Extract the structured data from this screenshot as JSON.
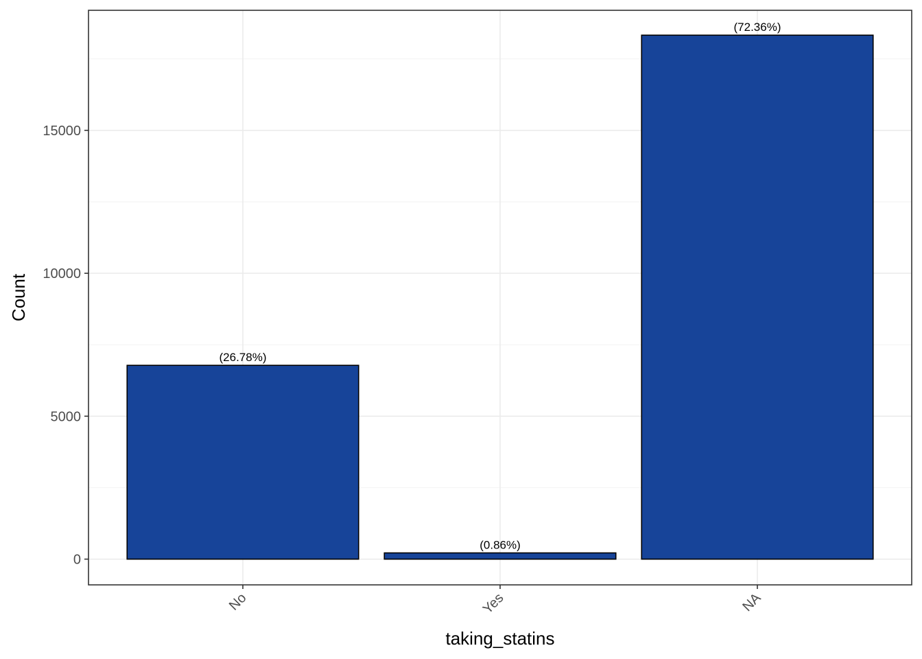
{
  "chart_data": {
    "type": "bar",
    "categories": [
      "No",
      "Yes",
      "NA"
    ],
    "values": [
      6780,
      218,
      18330
    ],
    "bar_labels": [
      "(26.78%)",
      "(0.86%)",
      "(72.36%)"
    ],
    "xlabel": "taking_statins",
    "ylabel": "Count",
    "ylim": [
      -900,
      19200
    ],
    "yticks": [
      0,
      5000,
      10000,
      15000
    ],
    "ytick_labels": [
      "0",
      "5000",
      "10000",
      "15000"
    ],
    "grid": true,
    "legend": "none",
    "colors": {
      "bar_fill": "#174499",
      "bar_outline": "#000000",
      "panel_border": "#333333",
      "grid": "#ebebeb"
    }
  }
}
